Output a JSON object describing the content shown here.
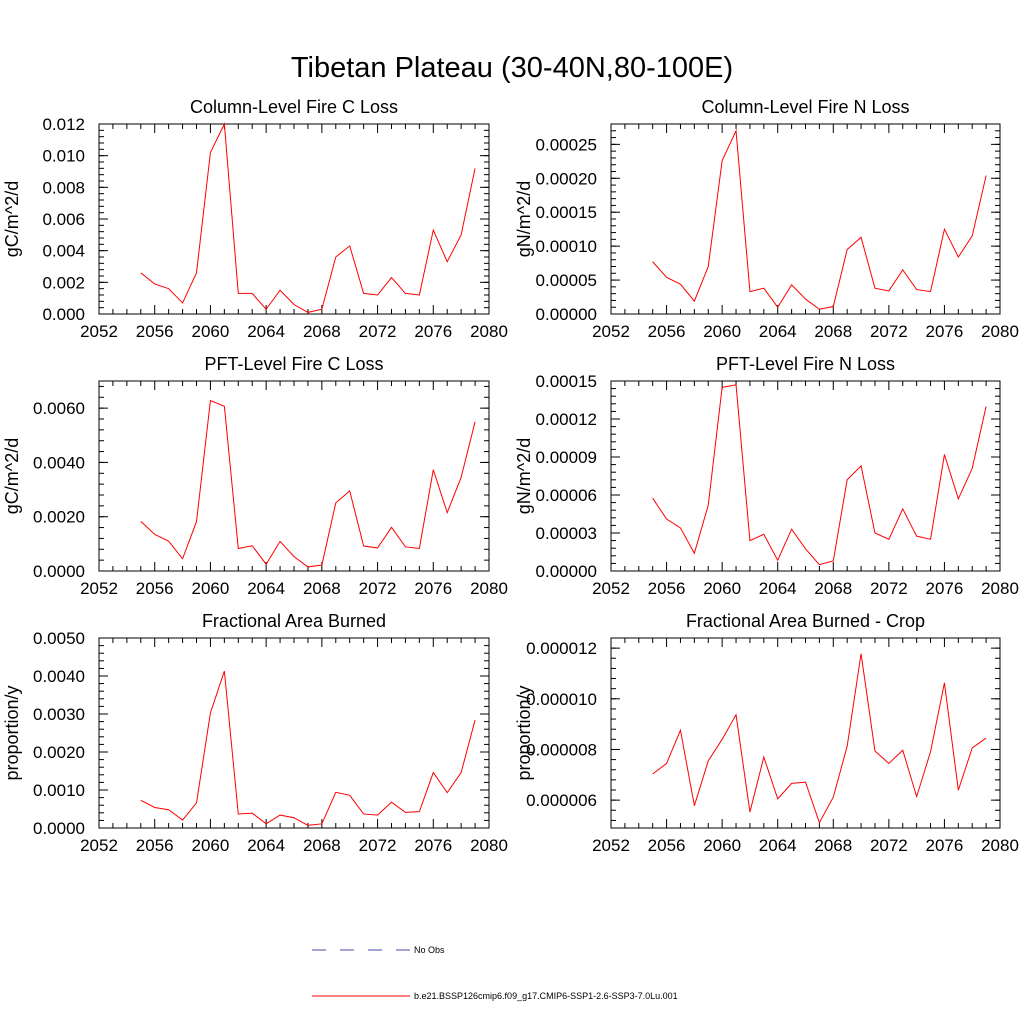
{
  "title": "Tibetan Plateau (30-40N,80-100E)",
  "legend": [
    {
      "label": "No Obs",
      "color": "#4a4aa8",
      "dash": true
    },
    {
      "label": "b.e21.BSSP126cmip6.f09_g17.CMIP6-SSP1-2.6-SSP3-7.0Lu.001",
      "color": "#ff0000",
      "dash": false
    }
  ],
  "chart_data": [
    {
      "type": "line",
      "title": "Column-Level Fire C Loss",
      "ylabel": "gC/m^2/d",
      "xlim": [
        2052,
        2080
      ],
      "ylim": [
        0,
        0.012
      ],
      "xticks": [
        "2052",
        "2056",
        "2060",
        "2064",
        "2068",
        "2072",
        "2076",
        "2080"
      ],
      "yticks": [
        "0.000",
        "0.002",
        "0.004",
        "0.006",
        "0.008",
        "0.010",
        "0.012"
      ],
      "x": [
        2055,
        2056,
        2057,
        2058,
        2059,
        2060,
        2061,
        2062,
        2063,
        2064,
        2065,
        2066,
        2067,
        2068,
        2069,
        2070,
        2071,
        2072,
        2073,
        2074,
        2075,
        2076,
        2077,
        2078,
        2079
      ],
      "series": [
        {
          "values": [
            0.0026,
            0.0019,
            0.0016,
            0.0007,
            0.0026,
            0.0102,
            0.012,
            0.0013,
            0.0013,
            0.0003,
            0.0015,
            0.0006,
            0.0001,
            0.0003,
            0.0036,
            0.0043,
            0.0013,
            0.0012,
            0.0023,
            0.0013,
            0.0012,
            0.0053,
            0.0033,
            0.005,
            0.0092
          ]
        }
      ]
    },
    {
      "type": "line",
      "title": "Column-Level Fire N Loss",
      "ylabel": "gN/m^2/d",
      "xlim": [
        2052,
        2080
      ],
      "ylim": [
        0,
        0.00028
      ],
      "xticks": [
        "2052",
        "2056",
        "2060",
        "2064",
        "2068",
        "2072",
        "2076",
        "2080"
      ],
      "yticks": [
        "0.00000",
        "0.00005",
        "0.00010",
        "0.00015",
        "0.00020",
        "0.00025"
      ],
      "x": [
        2055,
        2056,
        2057,
        2058,
        2059,
        2060,
        2061,
        2062,
        2063,
        2064,
        2065,
        2066,
        2067,
        2068,
        2069,
        2070,
        2071,
        2072,
        2073,
        2074,
        2075,
        2076,
        2077,
        2078,
        2079
      ],
      "series": [
        {
          "values": [
            7.7e-05,
            5.4e-05,
            4.4e-05,
            1.9e-05,
            7e-05,
            0.000226,
            0.00027,
            3.3e-05,
            3.8e-05,
            1e-05,
            4.3e-05,
            2.2e-05,
            7e-06,
            1.1e-05,
            9.5e-05,
            0.000113,
            3.8e-05,
            3.4e-05,
            6.5e-05,
            3.6e-05,
            3.3e-05,
            0.000125,
            8.4e-05,
            0.000115,
            0.000204
          ]
        }
      ]
    },
    {
      "type": "line",
      "title": "PFT-Level Fire C Loss",
      "ylabel": "gC/m^2/d",
      "xlim": [
        2052,
        2080
      ],
      "ylim": [
        0,
        0.007
      ],
      "xticks": [
        "2052",
        "2056",
        "2060",
        "2064",
        "2068",
        "2072",
        "2076",
        "2080"
      ],
      "yticks": [
        "0.0000",
        "0.0020",
        "0.0040",
        "0.0060"
      ],
      "x": [
        2055,
        2056,
        2057,
        2058,
        2059,
        2060,
        2061,
        2062,
        2063,
        2064,
        2065,
        2066,
        2067,
        2068,
        2069,
        2070,
        2071,
        2072,
        2073,
        2074,
        2075,
        2076,
        2077,
        2078,
        2079
      ],
      "series": [
        {
          "values": [
            0.00183,
            0.00135,
            0.0011,
            0.00045,
            0.00182,
            0.00628,
            0.00607,
            0.00083,
            0.00093,
            0.00025,
            0.00109,
            0.00053,
            0.00015,
            0.00022,
            0.00251,
            0.00295,
            0.00092,
            0.00085,
            0.00161,
            0.00089,
            0.00083,
            0.00373,
            0.00215,
            0.00345,
            0.0055
          ]
        }
      ]
    },
    {
      "type": "line",
      "title": "PFT-Level Fire N Loss",
      "ylabel": "gN/m^2/d",
      "xlim": [
        2052,
        2080
      ],
      "ylim": [
        0,
        0.00015
      ],
      "xticks": [
        "2052",
        "2056",
        "2060",
        "2064",
        "2068",
        "2072",
        "2076",
        "2080"
      ],
      "yticks": [
        "0.00000",
        "0.00003",
        "0.00006",
        "0.00009",
        "0.00012",
        "0.00015"
      ],
      "x": [
        2055,
        2056,
        2057,
        2058,
        2059,
        2060,
        2061,
        2062,
        2063,
        2064,
        2065,
        2066,
        2067,
        2068,
        2069,
        2070,
        2071,
        2072,
        2073,
        2074,
        2075,
        2076,
        2077,
        2078,
        2079
      ],
      "series": [
        {
          "values": [
            5.75e-05,
            4.1e-05,
            3.4e-05,
            1.4e-05,
            5.2e-05,
            0.000145,
            0.000147,
            2.4e-05,
            2.9e-05,
            8.5e-06,
            3.3e-05,
            1.75e-05,
            5e-06,
            8e-06,
            7.2e-05,
            8.3e-05,
            3e-05,
            2.5e-05,
            4.9e-05,
            2.75e-05,
            2.5e-05,
            9.2e-05,
            5.7e-05,
            8.1e-05,
            0.00013
          ]
        }
      ]
    },
    {
      "type": "line",
      "title": "Fractional Area Burned",
      "ylabel": "proportion/y",
      "xlim": [
        2052,
        2080
      ],
      "ylim": [
        0,
        0.005
      ],
      "xticks": [
        "2052",
        "2056",
        "2060",
        "2064",
        "2068",
        "2072",
        "2076",
        "2080"
      ],
      "yticks": [
        "0.0000",
        "0.0010",
        "0.0020",
        "0.0030",
        "0.0040",
        "0.0050"
      ],
      "x": [
        2055,
        2056,
        2057,
        2058,
        2059,
        2060,
        2061,
        2062,
        2063,
        2064,
        2065,
        2066,
        2067,
        2068,
        2069,
        2070,
        2071,
        2072,
        2073,
        2074,
        2075,
        2076,
        2077,
        2078,
        2079
      ],
      "series": [
        {
          "values": [
            0.00073,
            0.00054,
            0.00048,
            0.00021,
            0.00066,
            0.00303,
            0.00413,
            0.00037,
            0.00039,
            0.00011,
            0.00034,
            0.00027,
            7e-05,
            0.00011,
            0.00094,
            0.00086,
            0.00037,
            0.00034,
            0.00068,
            0.00041,
            0.00043,
            0.00146,
            0.00093,
            0.00146,
            0.00284
          ]
        }
      ]
    },
    {
      "type": "line",
      "title": "Fractional Area Burned - Crop",
      "ylabel": "proportion/y",
      "xlim": [
        2052,
        2080
      ],
      "ylim": [
        4.9e-06,
        1.24e-05
      ],
      "xticks": [
        "2052",
        "2056",
        "2060",
        "2064",
        "2068",
        "2072",
        "2076",
        "2080"
      ],
      "yticks": [
        "0.000006",
        "0.000008",
        "0.000010",
        "0.000012"
      ],
      "x": [
        2055,
        2056,
        2057,
        2058,
        2059,
        2060,
        2061,
        2062,
        2063,
        2064,
        2065,
        2066,
        2067,
        2068,
        2069,
        2070,
        2071,
        2072,
        2073,
        2074,
        2075,
        2076,
        2077,
        2078,
        2079
      ],
      "series": [
        {
          "values": [
            7.03e-06,
            7.45e-06,
            8.76e-06,
            5.78e-06,
            7.55e-06,
            8.4e-06,
            9.37e-06,
            5.53e-06,
            7.7e-06,
            6.05e-06,
            6.66e-06,
            6.71e-06,
            5.11e-06,
            6.12e-06,
            8.13e-06,
            1.178e-05,
            7.94e-06,
            7.45e-06,
            7.97e-06,
            6.14e-06,
            7.91e-06,
            1.063e-05,
            6.39e-06,
            8.06e-06,
            8.45e-06
          ]
        }
      ]
    }
  ]
}
